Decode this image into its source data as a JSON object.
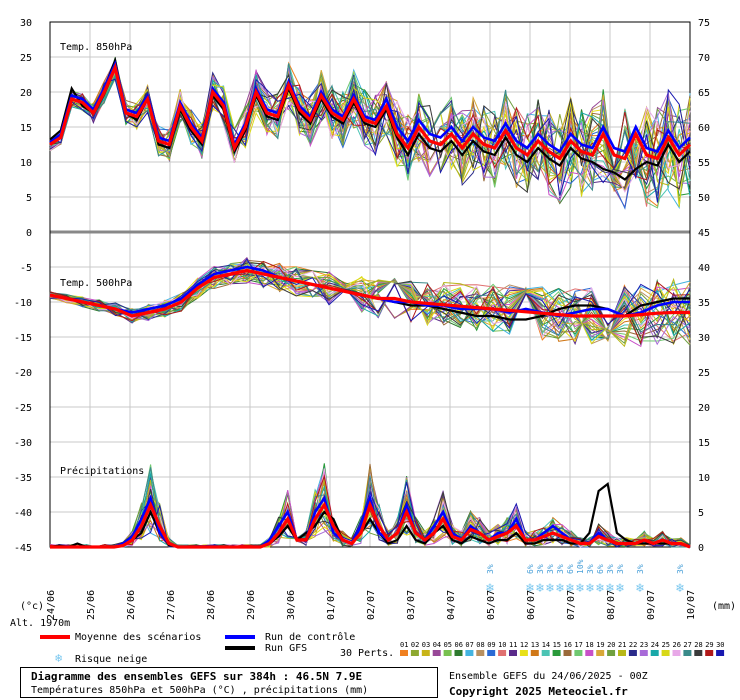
{
  "chart_data": {
    "type": "line",
    "x_dates": [
      "24/06",
      "25/06",
      "26/06",
      "27/06",
      "28/06",
      "29/06",
      "30/06",
      "01/07",
      "02/07",
      "03/07",
      "04/07",
      "05/07",
      "06/07",
      "07/07",
      "08/07",
      "09/07",
      "10/07"
    ],
    "y_left_ticks": [
      "30",
      "25",
      "20",
      "15",
      "10",
      "5",
      "0",
      "-5",
      "-10",
      "-15",
      "-20",
      "-25",
      "-30",
      "-35",
      "-40",
      "-45"
    ],
    "y_right_ticks": [
      "75",
      "70",
      "65",
      "60",
      "55",
      "50",
      "45",
      "40",
      "35",
      "30",
      "25",
      "20",
      "15",
      "10",
      "5",
      "0"
    ],
    "left_unit": "(°c)",
    "right_unit": "(mm)",
    "altitude": "Alt. 1970m",
    "panel_labels": [
      "Temp. 850hPa",
      "Temp. 500hPa",
      "Précipitations"
    ],
    "t850": {
      "mean": [
        12.5,
        13.5,
        19,
        18.5,
        17,
        20,
        23.5,
        17,
        16.5,
        19,
        13,
        12.5,
        18,
        15,
        13,
        20,
        18,
        12,
        15,
        20,
        17,
        16.5,
        21,
        17.5,
        16,
        19.5,
        17,
        16,
        19,
        16,
        15.5,
        18,
        14,
        12,
        15,
        13,
        12.5,
        14,
        12,
        14,
        12.5,
        12,
        14.5,
        12,
        11,
        13,
        11.5,
        10.5,
        13,
        11.5,
        11,
        14,
        11,
        10.5,
        14,
        11,
        10.5,
        13.5,
        11,
        12.5
      ],
      "control": [
        12.8,
        14,
        19.5,
        19,
        17.5,
        20.5,
        24,
        17.5,
        17,
        19.5,
        13.5,
        13,
        18.5,
        15.5,
        13.5,
        20.5,
        18.5,
        12.5,
        15.5,
        20.5,
        17.5,
        17,
        21.5,
        18,
        16.5,
        20,
        17.5,
        16.5,
        19.5,
        16.5,
        16,
        19,
        15,
        13,
        16,
        14,
        13.5,
        15,
        13,
        15,
        13.5,
        13,
        15.5,
        13,
        12,
        14,
        12.5,
        11.5,
        14,
        12.5,
        12,
        15,
        12,
        11.5,
        15,
        12,
        11.5,
        14.5,
        12,
        13.5
      ],
      "gfs": [
        13.2,
        14.5,
        20.5,
        18,
        17,
        20.5,
        24.5,
        17,
        16,
        19,
        12.5,
        12,
        17.5,
        14.5,
        12.5,
        19.5,
        17.5,
        11.5,
        14.5,
        19.5,
        16.5,
        16,
        20.5,
        17,
        15.5,
        19,
        16.5,
        15.5,
        18.5,
        15.5,
        15,
        17.5,
        13.5,
        11,
        14,
        12,
        11.5,
        13,
        11,
        13,
        11.5,
        11,
        13.5,
        11,
        10,
        12,
        10.5,
        9.5,
        12,
        10.5,
        10,
        9,
        8.5,
        7.5,
        9,
        10,
        9.5,
        12.5,
        10,
        11.5
      ]
    },
    "t500": {
      "mean": [
        -9,
        -9.5,
        -10,
        -10.5,
        -11,
        -12,
        -11.5,
        -11,
        -10,
        -8,
        -6.5,
        -6,
        -5.5,
        -6,
        -6.5,
        -7,
        -7.5,
        -8,
        -8.5,
        -9,
        -9.5,
        -9.5,
        -10,
        -10.2,
        -10.4,
        -10.6,
        -10.8,
        -11,
        -11.2,
        -11.4,
        -11.6,
        -11.8,
        -12,
        -12,
        -12,
        -12,
        -11.8,
        -11.6,
        -11.5,
        -11.5
      ],
      "control": [
        -9,
        -9.5,
        -10,
        -10.5,
        -11,
        -11.5,
        -11,
        -10.5,
        -9.5,
        -7.5,
        -6,
        -5.5,
        -5,
        -5.5,
        -6.5,
        -7,
        -7.5,
        -8,
        -8.5,
        -9,
        -9.5,
        -10,
        -10,
        -10.5,
        -10.5,
        -11,
        -11,
        -11,
        -11.5,
        -11,
        -11.5,
        -12,
        -11.5,
        -11,
        -11,
        -12,
        -11.5,
        -10.5,
        -10,
        -10
      ],
      "gfs": [
        -9,
        -9.5,
        -10,
        -10.5,
        -11,
        -12,
        -11.5,
        -11,
        -10,
        -8,
        -6.5,
        -6,
        -5.5,
        -6,
        -6.5,
        -7,
        -7.5,
        -8,
        -8.5,
        -9,
        -9.5,
        -10,
        -10.5,
        -10.5,
        -11,
        -11.5,
        -12,
        -12,
        -12.5,
        -12.5,
        -12,
        -11,
        -10.5,
        -10.5,
        -11,
        -12,
        -10.5,
        -10,
        -9.5,
        -9.5
      ]
    },
    "precip": {
      "mean": [
        0,
        0,
        0,
        0,
        0,
        0,
        0,
        0,
        0.2,
        1,
        3,
        6,
        3,
        0.5,
        0,
        0,
        0,
        0,
        0,
        0,
        0,
        0,
        0,
        0,
        0.5,
        2,
        4,
        1,
        1,
        4,
        6,
        3,
        1,
        0.5,
        2,
        6,
        3,
        1,
        2,
        5,
        2,
        1,
        2,
        4,
        1.5,
        1,
        2.5,
        2,
        1,
        1.5,
        2,
        3,
        1,
        1,
        1.5,
        2,
        1.5,
        1,
        0.5,
        0.5,
        1.5,
        1,
        0.5,
        0.5,
        0.5,
        1,
        0.5,
        1,
        0.5,
        0.5,
        0
      ],
      "control": [
        0,
        0,
        0,
        0,
        0,
        0,
        0,
        0,
        0.5,
        1.5,
        4,
        7,
        2,
        0.5,
        0,
        0,
        0,
        0,
        0,
        0,
        0,
        0,
        0,
        0,
        1,
        3,
        5,
        1,
        1,
        5,
        7,
        2,
        1,
        0.5,
        3,
        7,
        2,
        1,
        2,
        6,
        2,
        1,
        3,
        5,
        2,
        1,
        3,
        2,
        1,
        2,
        2,
        4,
        1,
        1,
        2,
        3,
        2,
        1,
        0.5,
        0.5,
        2,
        1,
        0.5,
        0.5,
        0.5,
        1,
        0.5,
        1,
        0.5,
        0.5,
        0
      ],
      "gfs": [
        0,
        0.2,
        0,
        0.5,
        0,
        0,
        0,
        0,
        0.2,
        1,
        2,
        5,
        2,
        0.3,
        0,
        0,
        0,
        0,
        0,
        0,
        0,
        0,
        0,
        0,
        0.5,
        1.5,
        3,
        1,
        2,
        3,
        5,
        4,
        1,
        0.5,
        2,
        4,
        2,
        0.5,
        1,
        3,
        1,
        0.5,
        2,
        3,
        1,
        0.5,
        1.5,
        1,
        0.5,
        1,
        1,
        2,
        0.5,
        0.5,
        1,
        1,
        1,
        0.5,
        0.5,
        2,
        8,
        9,
        2,
        1,
        0.5,
        0.5,
        0.5,
        0.5,
        0.5,
        0.5,
        0
      ]
    },
    "snow_risk": [
      {
        "date_index": 11.0,
        "label": "3%"
      },
      {
        "date_index": 12.0,
        "label": "6%"
      },
      {
        "date_index": 12.25,
        "label": "3%"
      },
      {
        "date_index": 12.5,
        "label": "3%"
      },
      {
        "date_index": 12.75,
        "label": "3%"
      },
      {
        "date_index": 13.0,
        "label": "6%"
      },
      {
        "date_index": 13.25,
        "label": "10%"
      },
      {
        "date_index": 13.5,
        "label": "3%"
      },
      {
        "date_index": 13.75,
        "label": "6%"
      },
      {
        "date_index": 14.0,
        "label": "3%"
      },
      {
        "date_index": 14.25,
        "label": "3%"
      },
      {
        "date_index": 14.75,
        "label": "3%"
      },
      {
        "date_index": 15.75,
        "label": "3%"
      }
    ],
    "legend": {
      "mean": "Moyenne des scénarios",
      "control": "Run de contrôle",
      "gfs": "Run GFS",
      "snow": "Risque neige",
      "perts_label": "30 Perts.",
      "colors": {
        "mean": "#ff0000",
        "control": "#0000ff",
        "gfs": "#000000",
        "snow": "#79c7ef"
      }
    },
    "perturbations": {
      "labels": [
        "01",
        "02",
        "03",
        "04",
        "05",
        "06",
        "07",
        "08",
        "09",
        "10",
        "11",
        "12",
        "13",
        "14",
        "15",
        "16",
        "17",
        "18",
        "19",
        "20",
        "21",
        "22",
        "23",
        "24",
        "25",
        "26",
        "27",
        "28",
        "29",
        "30"
      ],
      "colors": [
        "#f08020",
        "#8da830",
        "#c8b418",
        "#984898",
        "#78c050",
        "#2e7a2e",
        "#44b4e0",
        "#b89060",
        "#2a6ad4",
        "#e07070",
        "#5a2a8a",
        "#e8e018",
        "#d07818",
        "#4bc4b4",
        "#2a9a3a",
        "#9a6a3a",
        "#70c870",
        "#c850c8",
        "#d8a838",
        "#70a040",
        "#b8b818",
        "#2a2a8a",
        "#a86ad8",
        "#18a8a8",
        "#d8d818",
        "#e8a8e8",
        "#3a8a8a",
        "#3a3a3a",
        "#b01818",
        "#1818b0"
      ]
    }
  },
  "footer": {
    "title_line": "Diagramme des ensembles GEFS sur 384h : 46.5N 7.9E",
    "subtitle_line": "Températures 850hPa et 500hPa (°C) , précipitations (mm)",
    "ensemble_line": "Ensemble GEFS du 24/06/2025 - 00Z",
    "copyright_line": "Copyright 2025 Meteociel.fr"
  }
}
